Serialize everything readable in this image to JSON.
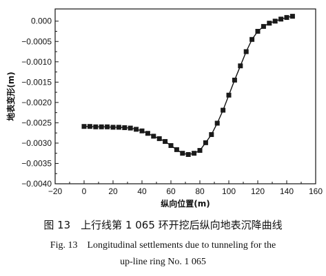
{
  "chart_data": {
    "type": "line",
    "xlabel": "纵向位置(m)",
    "ylabel": "地表变形(m)",
    "xlim": [
      -20,
      160
    ],
    "ylim": [
      -0.004,
      0.0003
    ],
    "xticks": [
      -20,
      0,
      20,
      40,
      60,
      80,
      100,
      120,
      140,
      160
    ],
    "yticks": [
      0.0,
      -0.0005,
      -0.001,
      -0.0015,
      -0.002,
      -0.0025,
      -0.003,
      -0.0035,
      -0.004
    ],
    "xtick_labels": [
      "−20",
      "0",
      "20",
      "40",
      "60",
      "80",
      "100",
      "120",
      "140",
      "160"
    ],
    "ytick_labels": [
      "0.000",
      "−0.0005",
      "−0.0010",
      "−0.0015",
      "−0.0020",
      "−0.0025",
      "−0.0030",
      "−0.0035",
      "−0.0040"
    ],
    "grid": false,
    "marker": "square",
    "series": [
      {
        "x": [
          0,
          4,
          8,
          12,
          16,
          20,
          24,
          28,
          32,
          36,
          40,
          44,
          48,
          52,
          56,
          60,
          64,
          68,
          72,
          76,
          80,
          84,
          88,
          92,
          96,
          100,
          104,
          108,
          112,
          116,
          120,
          124,
          128,
          132,
          136,
          140,
          144
        ],
        "y": [
          -0.00259,
          -0.00259,
          -0.0026,
          -0.0026,
          -0.0026,
          -0.00261,
          -0.00261,
          -0.00262,
          -0.00263,
          -0.00266,
          -0.0027,
          -0.00276,
          -0.00283,
          -0.00289,
          -0.00296,
          -0.00306,
          -0.00316,
          -0.00325,
          -0.00328,
          -0.00325,
          -0.00318,
          -0.00299,
          -0.00279,
          -0.00251,
          -0.00219,
          -0.00182,
          -0.00145,
          -0.0011,
          -0.00075,
          -0.00045,
          -0.00025,
          -0.00013,
          -5e-05,
          0.0,
          5e-05,
          9e-05,
          0.00012
        ]
      }
    ]
  },
  "captions": {
    "cn": "图 13　上行线第 1 065 环开挖后纵向地表沉降曲线",
    "en_line1": "Fig. 13　Longitudinal settlements due to tunneling for the",
    "en_line2": "up-line ring No. 1 065"
  }
}
